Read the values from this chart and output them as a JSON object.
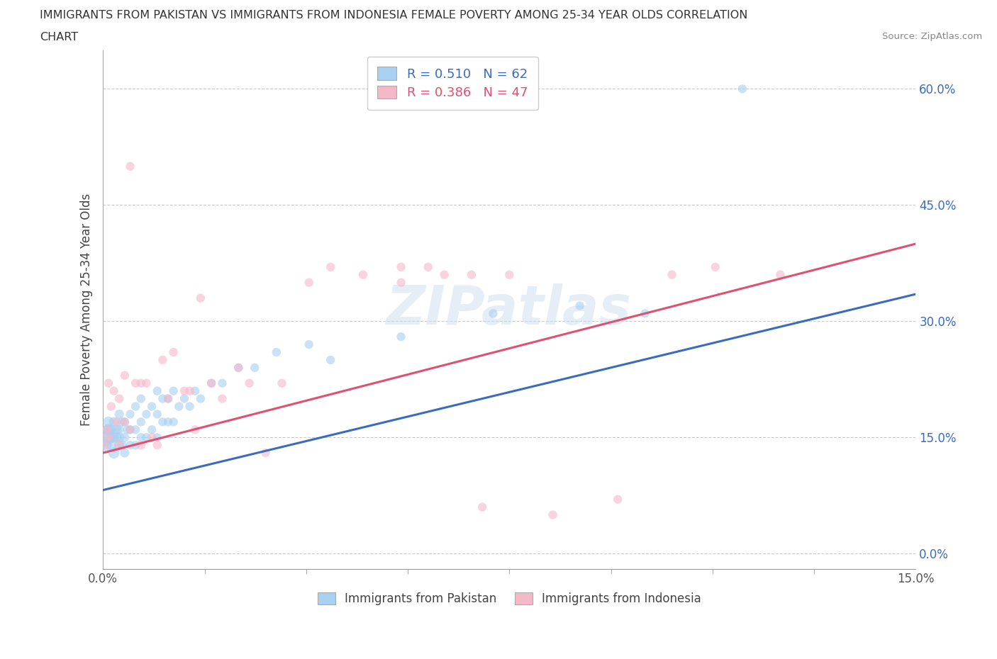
{
  "title_line1": "IMMIGRANTS FROM PAKISTAN VS IMMIGRANTS FROM INDONESIA FEMALE POVERTY AMONG 25-34 YEAR OLDS CORRELATION",
  "title_line2": "CHART",
  "source": "Source: ZipAtlas.com",
  "ylabel": "Female Poverty Among 25-34 Year Olds",
  "xlim": [
    0.0,
    0.15
  ],
  "ylim": [
    -0.02,
    0.65
  ],
  "yticks": [
    0.0,
    0.15,
    0.3,
    0.45,
    0.6
  ],
  "ytick_labels": [
    "0.0%",
    "15.0%",
    "30.0%",
    "45.0%",
    "60.0%"
  ],
  "pakistan_color": "#A8D0F0",
  "indonesia_color": "#F5B8C8",
  "pakistan_R": 0.51,
  "pakistan_N": 62,
  "indonesia_R": 0.386,
  "indonesia_N": 47,
  "pakistan_line_color": "#3A6BBF",
  "indonesia_line_color": "#E05070",
  "pk_line_x0": 0.0,
  "pk_line_y0": 0.082,
  "pk_line_x1": 0.15,
  "pk_line_y1": 0.335,
  "id_line_x0": 0.0,
  "id_line_y0": 0.13,
  "id_line_x1": 0.15,
  "id_line_y1": 0.4,
  "pakistan_points_x": [
    0.0002,
    0.0005,
    0.0008,
    0.001,
    0.001,
    0.001,
    0.0015,
    0.0015,
    0.002,
    0.002,
    0.002,
    0.0025,
    0.0025,
    0.003,
    0.003,
    0.003,
    0.003,
    0.0035,
    0.0035,
    0.004,
    0.004,
    0.004,
    0.0045,
    0.005,
    0.005,
    0.005,
    0.006,
    0.006,
    0.006,
    0.007,
    0.007,
    0.007,
    0.008,
    0.008,
    0.009,
    0.009,
    0.01,
    0.01,
    0.01,
    0.011,
    0.011,
    0.012,
    0.012,
    0.013,
    0.013,
    0.014,
    0.015,
    0.016,
    0.017,
    0.018,
    0.02,
    0.022,
    0.025,
    0.028,
    0.032,
    0.038,
    0.042,
    0.055,
    0.072,
    0.088,
    0.1,
    0.118
  ],
  "pakistan_points_y": [
    0.15,
    0.14,
    0.16,
    0.15,
    0.16,
    0.17,
    0.14,
    0.16,
    0.13,
    0.15,
    0.17,
    0.15,
    0.16,
    0.14,
    0.15,
    0.16,
    0.18,
    0.14,
    0.17,
    0.13,
    0.15,
    0.17,
    0.16,
    0.14,
    0.16,
    0.18,
    0.14,
    0.16,
    0.19,
    0.15,
    0.17,
    0.2,
    0.15,
    0.18,
    0.16,
    0.19,
    0.15,
    0.18,
    0.21,
    0.17,
    0.2,
    0.17,
    0.2,
    0.17,
    0.21,
    0.19,
    0.2,
    0.19,
    0.21,
    0.2,
    0.22,
    0.22,
    0.24,
    0.24,
    0.26,
    0.27,
    0.25,
    0.28,
    0.31,
    0.32,
    0.31,
    0.6
  ],
  "pakistan_sizes": [
    350,
    150,
    100,
    200,
    150,
    120,
    120,
    100,
    130,
    110,
    100,
    110,
    100,
    110,
    100,
    90,
    90,
    90,
    90,
    90,
    90,
    80,
    80,
    80,
    80,
    80,
    80,
    80,
    80,
    80,
    80,
    80,
    80,
    80,
    80,
    80,
    80,
    80,
    80,
    80,
    80,
    80,
    80,
    80,
    80,
    80,
    80,
    80,
    80,
    80,
    80,
    80,
    80,
    80,
    80,
    80,
    80,
    80,
    80,
    80,
    80,
    80
  ],
  "indonesia_points_x": [
    0.0003,
    0.0008,
    0.001,
    0.001,
    0.0015,
    0.002,
    0.0025,
    0.003,
    0.003,
    0.004,
    0.004,
    0.005,
    0.005,
    0.006,
    0.007,
    0.007,
    0.008,
    0.009,
    0.01,
    0.011,
    0.012,
    0.013,
    0.015,
    0.016,
    0.017,
    0.018,
    0.02,
    0.022,
    0.025,
    0.027,
    0.03,
    0.033,
    0.038,
    0.042,
    0.048,
    0.055,
    0.06,
    0.068,
    0.075,
    0.083,
    0.095,
    0.105,
    0.113,
    0.125,
    0.055,
    0.063,
    0.07
  ],
  "indonesia_points_y": [
    0.14,
    0.16,
    0.15,
    0.22,
    0.19,
    0.21,
    0.17,
    0.14,
    0.2,
    0.23,
    0.17,
    0.5,
    0.16,
    0.22,
    0.14,
    0.22,
    0.22,
    0.15,
    0.14,
    0.25,
    0.2,
    0.26,
    0.21,
    0.21,
    0.16,
    0.33,
    0.22,
    0.2,
    0.24,
    0.22,
    0.13,
    0.22,
    0.35,
    0.37,
    0.36,
    0.37,
    0.37,
    0.36,
    0.36,
    0.05,
    0.07,
    0.36,
    0.37,
    0.36,
    0.35,
    0.36,
    0.06
  ],
  "background_color": "#FFFFFF",
  "grid_color": "#CCCCCC",
  "tick_label_color": "#3A6BBF"
}
